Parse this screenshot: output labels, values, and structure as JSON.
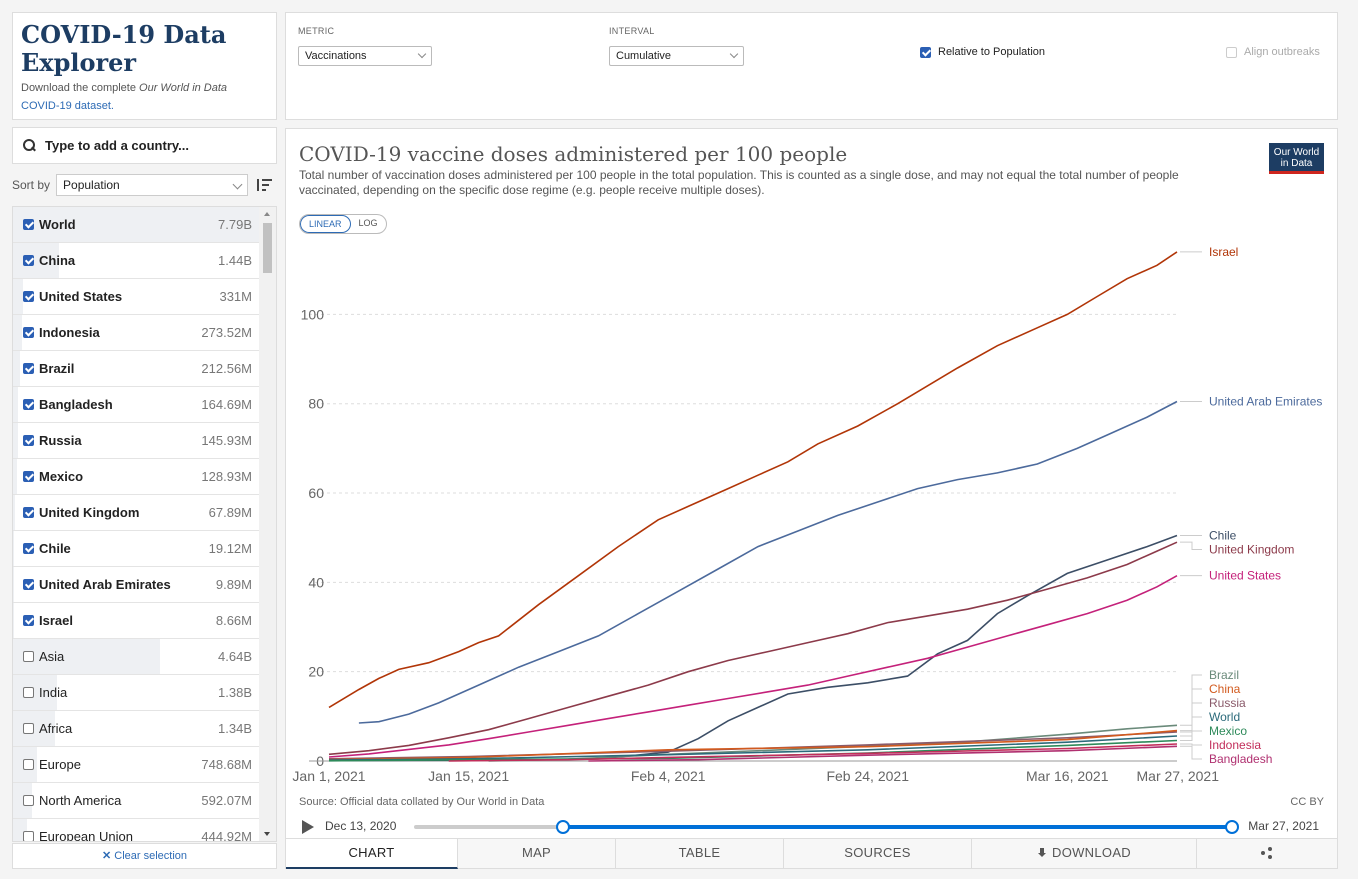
{
  "app": {
    "title": "COVID-19 Data Explorer",
    "subtitle_prefix": "Download the complete ",
    "subtitle_italic": "Our World in Data",
    "subtitle_link": "COVID-19 dataset."
  },
  "search": {
    "placeholder": "Type to add a country..."
  },
  "sort": {
    "label": "Sort by",
    "value": "Population"
  },
  "countries": [
    {
      "name": "World",
      "population": "7.79B",
      "selected": true,
      "share": 1.0
    },
    {
      "name": "China",
      "population": "1.44B",
      "selected": true,
      "share": 0.185
    },
    {
      "name": "United States",
      "population": "331M",
      "selected": true,
      "share": 0.0425
    },
    {
      "name": "Indonesia",
      "population": "273.52M",
      "selected": true,
      "share": 0.035
    },
    {
      "name": "Brazil",
      "population": "212.56M",
      "selected": true,
      "share": 0.0273
    },
    {
      "name": "Bangladesh",
      "population": "164.69M",
      "selected": true,
      "share": 0.0211
    },
    {
      "name": "Russia",
      "population": "145.93M",
      "selected": true,
      "share": 0.0187
    },
    {
      "name": "Mexico",
      "population": "128.93M",
      "selected": true,
      "share": 0.0166
    },
    {
      "name": "United Kingdom",
      "population": "67.89M",
      "selected": true,
      "share": 0.0087
    },
    {
      "name": "Chile",
      "population": "19.12M",
      "selected": true,
      "share": 0.0025
    },
    {
      "name": "United Arab Emirates",
      "population": "9.89M",
      "selected": true,
      "share": 0.0013
    },
    {
      "name": "Israel",
      "population": "8.66M",
      "selected": true,
      "share": 0.0011
    },
    {
      "name": "Asia",
      "population": "4.64B",
      "selected": false,
      "share": 0.596
    },
    {
      "name": "India",
      "population": "1.38B",
      "selected": false,
      "share": 0.177
    },
    {
      "name": "Africa",
      "population": "1.34B",
      "selected": false,
      "share": 0.172
    },
    {
      "name": "Europe",
      "population": "748.68M",
      "selected": false,
      "share": 0.096
    },
    {
      "name": "North America",
      "population": "592.07M",
      "selected": false,
      "share": 0.076
    },
    {
      "name": "European Union",
      "population": "444.92M",
      "selected": false,
      "share": 0.057
    }
  ],
  "clear_selection": "Clear selection",
  "controls": {
    "metric_label": "METRIC",
    "metric_value": "Vaccinations",
    "interval_label": "INTERVAL",
    "interval_value": "Cumulative",
    "relative_label": "Relative to Population",
    "relative_checked": true,
    "align_label": "Align outbreaks",
    "align_checked": false
  },
  "chart_header": {
    "title": "COVID-19 vaccine doses administered per 100 people",
    "subtitle": "Total number of vaccination doses administered per 100 people in the total population. This is counted as a single dose, and may not equal the total number of people vaccinated, depending on the specific dose regime (e.g. people receive multiple doses).",
    "logo_line1": "Our World",
    "logo_line2": "in Data",
    "scale_linear": "LINEAR",
    "scale_log": "LOG"
  },
  "chart_data": {
    "type": "line",
    "title": "COVID-19 vaccine doses administered per 100 people",
    "xlabel": "",
    "ylabel": "",
    "x_ticks": [
      "Jan 1, 2021",
      "Jan 15, 2021",
      "Feb 4, 2021",
      "Feb 24, 2021",
      "Mar 16, 2021",
      "Mar 27, 2021"
    ],
    "x_range": [
      "2021-01-01",
      "2021-03-27"
    ],
    "y_ticks": [
      0,
      20,
      40,
      60,
      80,
      100
    ],
    "ylim": [
      0,
      118
    ],
    "grid": "horizontal-dashed",
    "legend": "inline-right",
    "series": [
      {
        "name": "Israel",
        "color": "#b13507",
        "points": [
          [
            "2021-01-01",
            12
          ],
          [
            "2021-01-04",
            16
          ],
          [
            "2021-01-06",
            18.5
          ],
          [
            "2021-01-08",
            20.5
          ],
          [
            "2021-01-11",
            22
          ],
          [
            "2021-01-14",
            24.5
          ],
          [
            "2021-01-16",
            26.5
          ],
          [
            "2021-01-18",
            28
          ],
          [
            "2021-01-22",
            35
          ],
          [
            "2021-01-26",
            41.5
          ],
          [
            "2021-01-30",
            48
          ],
          [
            "2021-02-03",
            54
          ],
          [
            "2021-02-06",
            57
          ],
          [
            "2021-02-10",
            61
          ],
          [
            "2021-02-13",
            64
          ],
          [
            "2021-02-16",
            67
          ],
          [
            "2021-02-19",
            71
          ],
          [
            "2021-02-23",
            75
          ],
          [
            "2021-02-27",
            80
          ],
          [
            "2021-03-02",
            84
          ],
          [
            "2021-03-05",
            88
          ],
          [
            "2021-03-09",
            93
          ],
          [
            "2021-03-13",
            97
          ],
          [
            "2021-03-16",
            100
          ],
          [
            "2021-03-19",
            104
          ],
          [
            "2021-03-22",
            108
          ],
          [
            "2021-03-25",
            111
          ],
          [
            "2021-03-27",
            114
          ]
        ]
      },
      {
        "name": "United Arab Emirates",
        "color": "#4c6a9c",
        "points": [
          [
            "2021-01-04",
            8.5
          ],
          [
            "2021-01-06",
            8.8
          ],
          [
            "2021-01-09",
            10.5
          ],
          [
            "2021-01-12",
            13
          ],
          [
            "2021-01-16",
            17
          ],
          [
            "2021-01-20",
            21
          ],
          [
            "2021-01-24",
            24.5
          ],
          [
            "2021-01-28",
            28
          ],
          [
            "2021-02-01",
            33
          ],
          [
            "2021-02-05",
            38
          ],
          [
            "2021-02-09",
            43
          ],
          [
            "2021-02-13",
            48
          ],
          [
            "2021-02-17",
            51.5
          ],
          [
            "2021-02-21",
            55
          ],
          [
            "2021-02-25",
            58
          ],
          [
            "2021-03-01",
            61
          ],
          [
            "2021-03-05",
            63
          ],
          [
            "2021-03-09",
            64.5
          ],
          [
            "2021-03-13",
            66.5
          ],
          [
            "2021-03-17",
            70
          ],
          [
            "2021-03-20",
            73
          ],
          [
            "2021-03-24",
            77
          ],
          [
            "2021-03-27",
            80.5
          ]
        ]
      },
      {
        "name": "Chile",
        "color": "#3c4e66",
        "points": [
          [
            "2021-01-01",
            0.1
          ],
          [
            "2021-01-20",
            0.2
          ],
          [
            "2021-01-28",
            0.5
          ],
          [
            "2021-02-04",
            2
          ],
          [
            "2021-02-07",
            5
          ],
          [
            "2021-02-10",
            9
          ],
          [
            "2021-02-13",
            12
          ],
          [
            "2021-02-16",
            15
          ],
          [
            "2021-02-20",
            16.5
          ],
          [
            "2021-02-24",
            17.5
          ],
          [
            "2021-02-28",
            19
          ],
          [
            "2021-03-03",
            24
          ],
          [
            "2021-03-06",
            27
          ],
          [
            "2021-03-09",
            33
          ],
          [
            "2021-03-12",
            37
          ],
          [
            "2021-03-16",
            42
          ],
          [
            "2021-03-20",
            45
          ],
          [
            "2021-03-24",
            48
          ],
          [
            "2021-03-27",
            50.5
          ]
        ]
      },
      {
        "name": "United Kingdom",
        "color": "#8c3a4a",
        "points": [
          [
            "2021-01-01",
            1.5
          ],
          [
            "2021-01-05",
            2.3
          ],
          [
            "2021-01-09",
            3.5
          ],
          [
            "2021-01-13",
            5.2
          ],
          [
            "2021-01-17",
            7
          ],
          [
            "2021-01-21",
            9.5
          ],
          [
            "2021-01-25",
            12
          ],
          [
            "2021-01-29",
            14.5
          ],
          [
            "2021-02-02",
            17
          ],
          [
            "2021-02-06",
            20
          ],
          [
            "2021-02-10",
            22.5
          ],
          [
            "2021-02-14",
            24.5
          ],
          [
            "2021-02-18",
            26.5
          ],
          [
            "2021-02-22",
            28.5
          ],
          [
            "2021-02-26",
            31
          ],
          [
            "2021-03-02",
            32.5
          ],
          [
            "2021-03-06",
            34
          ],
          [
            "2021-03-10",
            36
          ],
          [
            "2021-03-14",
            38.5
          ],
          [
            "2021-03-18",
            41
          ],
          [
            "2021-03-22",
            44
          ],
          [
            "2021-03-25",
            47
          ],
          [
            "2021-03-27",
            49
          ]
        ]
      },
      {
        "name": "United States",
        "color": "#c4217a",
        "points": [
          [
            "2021-01-01",
            0.9
          ],
          [
            "2021-01-05",
            1.6
          ],
          [
            "2021-01-09",
            2.6
          ],
          [
            "2021-01-13",
            3.6
          ],
          [
            "2021-01-17",
            5
          ],
          [
            "2021-01-21",
            6.5
          ],
          [
            "2021-01-25",
            8
          ],
          [
            "2021-01-29",
            9.5
          ],
          [
            "2021-02-02",
            11
          ],
          [
            "2021-02-06",
            12.5
          ],
          [
            "2021-02-10",
            14
          ],
          [
            "2021-02-14",
            15.5
          ],
          [
            "2021-02-18",
            17
          ],
          [
            "2021-02-22",
            19
          ],
          [
            "2021-02-26",
            21
          ],
          [
            "2021-03-02",
            23
          ],
          [
            "2021-03-06",
            25.5
          ],
          [
            "2021-03-10",
            28
          ],
          [
            "2021-03-14",
            30.5
          ],
          [
            "2021-03-18",
            33
          ],
          [
            "2021-03-22",
            36
          ],
          [
            "2021-03-25",
            39
          ],
          [
            "2021-03-27",
            41.5
          ]
        ]
      },
      {
        "name": "Brazil",
        "color": "#6a8a7a",
        "points": [
          [
            "2021-01-17",
            0
          ],
          [
            "2021-01-25",
            0.4
          ],
          [
            "2021-02-04",
            1.5
          ],
          [
            "2021-02-14",
            2.4
          ],
          [
            "2021-02-24",
            3.3
          ],
          [
            "2021-03-06",
            4.3
          ],
          [
            "2021-03-16",
            6
          ],
          [
            "2021-03-22",
            7.2
          ],
          [
            "2021-03-27",
            8
          ]
        ]
      },
      {
        "name": "Russia",
        "color": "#8a5a6a",
        "points": [
          [
            "2021-01-01",
            0.5
          ],
          [
            "2021-01-15",
            1
          ],
          [
            "2021-02-04",
            2.2
          ],
          [
            "2021-02-24",
            3.6
          ],
          [
            "2021-03-16",
            5.2
          ],
          [
            "2021-03-27",
            6.5
          ]
        ]
      },
      {
        "name": "China",
        "color": "#d25a1e",
        "points": [
          [
            "2021-01-01",
            0.3
          ],
          [
            "2021-01-15",
            0.8
          ],
          [
            "2021-02-04",
            2.5
          ],
          [
            "2021-02-24",
            3.2
          ],
          [
            "2021-03-16",
            4.8
          ],
          [
            "2021-03-27",
            6.8
          ]
        ]
      },
      {
        "name": "World",
        "color": "#2b6a7a",
        "points": [
          [
            "2021-01-01",
            0.2
          ],
          [
            "2021-01-15",
            0.5
          ],
          [
            "2021-02-04",
            1.4
          ],
          [
            "2021-02-24",
            2.5
          ],
          [
            "2021-03-16",
            4.2
          ],
          [
            "2021-03-27",
            5.6
          ]
        ]
      },
      {
        "name": "Mexico",
        "color": "#2e8a5a",
        "points": [
          [
            "2021-01-01",
            0.05
          ],
          [
            "2021-01-15",
            0.3
          ],
          [
            "2021-02-04",
            0.6
          ],
          [
            "2021-02-24",
            1.8
          ],
          [
            "2021-03-16",
            3.5
          ],
          [
            "2021-03-27",
            4.6
          ]
        ]
      },
      {
        "name": "Indonesia",
        "color": "#c22e5a",
        "points": [
          [
            "2021-01-13",
            0
          ],
          [
            "2021-01-25",
            0.3
          ],
          [
            "2021-02-04",
            0.8
          ],
          [
            "2021-02-24",
            1.7
          ],
          [
            "2021-03-16",
            2.8
          ],
          [
            "2021-03-27",
            3.8
          ]
        ]
      },
      {
        "name": "Bangladesh",
        "color": "#b03070",
        "points": [
          [
            "2021-01-27",
            0
          ],
          [
            "2021-02-07",
            0.3
          ],
          [
            "2021-02-24",
            1.3
          ],
          [
            "2021-03-16",
            2.3
          ],
          [
            "2021-03-27",
            3.3
          ]
        ]
      }
    ],
    "label_order": [
      "Israel",
      "United Arab Emirates",
      "Chile",
      "United Kingdom",
      "United States",
      "Brazil",
      "Russia",
      "China",
      "World",
      "Mexico",
      "Indonesia",
      "Bangladesh"
    ]
  },
  "source": "Source: Official data collated by Our World in Data",
  "license": "CC BY",
  "timeline": {
    "start": "Dec 13, 2020",
    "end": "Mar 27, 2021",
    "range_start_fraction": 0.182,
    "range_end_fraction": 1.0
  },
  "tabs": [
    {
      "label": "CHART",
      "active": true
    },
    {
      "label": "MAP",
      "active": false
    },
    {
      "label": "TABLE",
      "active": false
    },
    {
      "label": "SOURCES",
      "active": false
    },
    {
      "label": "DOWNLOAD",
      "active": false
    },
    {
      "label": "",
      "active": false
    }
  ],
  "icons": {
    "search": "search-icon",
    "sort": "sort-descending-icon",
    "play": "play-icon",
    "download": "download-icon",
    "share": "share-icon",
    "clear": "close-icon"
  }
}
